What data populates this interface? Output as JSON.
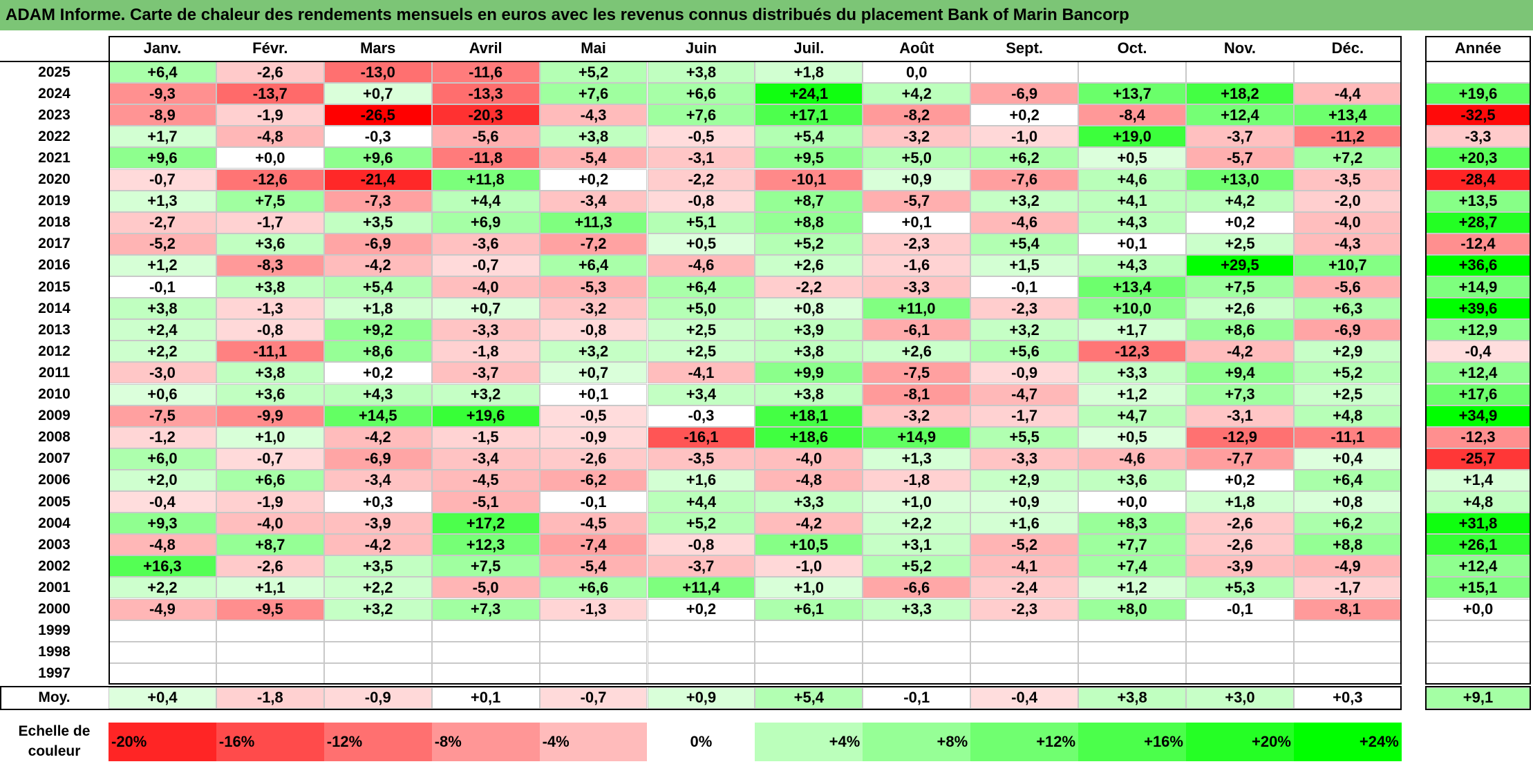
{
  "title": "ADAM Informe. Carte de chaleur des rendements mensuels en euros avec les revenus connus distribués du placement Bank of Marin Bancorp",
  "chart_data": {
    "type": "heatmap",
    "title": "ADAM Informe. Carte de chaleur des rendements mensuels en euros avec les revenus connus distribués du placement Bank of Marin Bancorp",
    "months": [
      "Janv.",
      "Févr.",
      "Mars",
      "Avril",
      "Mai",
      "Juin",
      "Juil.",
      "Août",
      "Sept.",
      "Oct.",
      "Nov.",
      "Déc."
    ],
    "annual_label": "Année",
    "average_label": "Moy.",
    "rows": [
      {
        "year": "2025",
        "values": [
          "+6,4",
          "-2,6",
          "-13,0",
          "-11,6",
          "+5,2",
          "+3,8",
          "+1,8",
          "0,0",
          "",
          "",
          "",
          ""
        ],
        "annual": ""
      },
      {
        "year": "2024",
        "values": [
          "-9,3",
          "-13,7",
          "+0,7",
          "-13,3",
          "+7,6",
          "+6,6",
          "+24,1",
          "+4,2",
          "-6,9",
          "+13,7",
          "+18,2",
          "-4,4"
        ],
        "annual": "+19,6"
      },
      {
        "year": "2023",
        "values": [
          "-8,9",
          "-1,9",
          "-26,5",
          "-20,3",
          "-4,3",
          "+7,6",
          "+17,1",
          "-8,2",
          "+0,2",
          "-8,4",
          "+12,4",
          "+13,4"
        ],
        "annual": "-32,5"
      },
      {
        "year": "2022",
        "values": [
          "+1,7",
          "-4,8",
          "-0,3",
          "-5,6",
          "+3,8",
          "-0,5",
          "+5,4",
          "-3,2",
          "-1,0",
          "+19,0",
          "-3,7",
          "-11,2"
        ],
        "annual": "-3,3"
      },
      {
        "year": "2021",
        "values": [
          "+9,6",
          "+0,0",
          "+9,6",
          "-11,8",
          "-5,4",
          "-3,1",
          "+9,5",
          "+5,0",
          "+6,2",
          "+0,5",
          "-5,7",
          "+7,2"
        ],
        "annual": "+20,3"
      },
      {
        "year": "2020",
        "values": [
          "-0,7",
          "-12,6",
          "-21,4",
          "+11,8",
          "+0,2",
          "-2,2",
          "-10,1",
          "+0,9",
          "-7,6",
          "+4,6",
          "+13,0",
          "-3,5"
        ],
        "annual": "-28,4"
      },
      {
        "year": "2019",
        "values": [
          "+1,3",
          "+7,5",
          "-7,3",
          "+4,4",
          "-3,4",
          "-0,8",
          "+8,7",
          "-5,7",
          "+3,2",
          "+4,1",
          "+4,2",
          "-2,0"
        ],
        "annual": "+13,5"
      },
      {
        "year": "2018",
        "values": [
          "-2,7",
          "-1,7",
          "+3,5",
          "+6,9",
          "+11,3",
          "+5,1",
          "+8,8",
          "+0,1",
          "-4,6",
          "+4,3",
          "+0,2",
          "-4,0"
        ],
        "annual": "+28,7"
      },
      {
        "year": "2017",
        "values": [
          "-5,2",
          "+3,6",
          "-6,9",
          "-3,6",
          "-7,2",
          "+0,5",
          "+5,2",
          "-2,3",
          "+5,4",
          "+0,1",
          "+2,5",
          "-4,3"
        ],
        "annual": "-12,4"
      },
      {
        "year": "2016",
        "values": [
          "+1,2",
          "-8,3",
          "-4,2",
          "-0,7",
          "+6,4",
          "-4,6",
          "+2,6",
          "-1,6",
          "+1,5",
          "+4,3",
          "+29,5",
          "+10,7"
        ],
        "annual": "+36,6"
      },
      {
        "year": "2015",
        "values": [
          "-0,1",
          "+3,8",
          "+5,4",
          "-4,0",
          "-5,3",
          "+6,4",
          "-2,2",
          "-3,3",
          "-0,1",
          "+13,4",
          "+7,5",
          "-5,6"
        ],
        "annual": "+14,9"
      },
      {
        "year": "2014",
        "values": [
          "+3,8",
          "-1,3",
          "+1,8",
          "+0,7",
          "-3,2",
          "+5,0",
          "+0,8",
          "+11,0",
          "-2,3",
          "+10,0",
          "+2,6",
          "+6,3"
        ],
        "annual": "+39,6"
      },
      {
        "year": "2013",
        "values": [
          "+2,4",
          "-0,8",
          "+9,2",
          "-3,3",
          "-0,8",
          "+2,5",
          "+3,9",
          "-6,1",
          "+3,2",
          "+1,7",
          "+8,6",
          "-6,9"
        ],
        "annual": "+12,9"
      },
      {
        "year": "2012",
        "values": [
          "+2,2",
          "-11,1",
          "+8,6",
          "-1,8",
          "+3,2",
          "+2,5",
          "+3,8",
          "+2,6",
          "+5,6",
          "-12,3",
          "-4,2",
          "+2,9"
        ],
        "annual": "-0,4"
      },
      {
        "year": "2011",
        "values": [
          "-3,0",
          "+3,8",
          "+0,2",
          "-3,7",
          "+0,7",
          "-4,1",
          "+9,9",
          "-7,5",
          "-0,9",
          "+3,3",
          "+9,4",
          "+5,2"
        ],
        "annual": "+12,4"
      },
      {
        "year": "2010",
        "values": [
          "+0,6",
          "+3,6",
          "+4,3",
          "+3,2",
          "+0,1",
          "+3,4",
          "+3,8",
          "-8,1",
          "-4,7",
          "+1,2",
          "+7,3",
          "+2,5"
        ],
        "annual": "+17,6"
      },
      {
        "year": "2009",
        "values": [
          "-7,5",
          "-9,9",
          "+14,5",
          "+19,6",
          "-0,5",
          "-0,3",
          "+18,1",
          "-3,2",
          "-1,7",
          "+4,7",
          "-3,1",
          "+4,8"
        ],
        "annual": "+34,9"
      },
      {
        "year": "2008",
        "values": [
          "-1,2",
          "+1,0",
          "-4,2",
          "-1,5",
          "-0,9",
          "-16,1",
          "+18,6",
          "+14,9",
          "+5,5",
          "+0,5",
          "-12,9",
          "-11,1"
        ],
        "annual": "-12,3"
      },
      {
        "year": "2007",
        "values": [
          "+6,0",
          "-0,7",
          "-6,9",
          "-3,4",
          "-2,6",
          "-3,5",
          "-4,0",
          "+1,3",
          "-3,3",
          "-4,6",
          "-7,7",
          "+0,4"
        ],
        "annual": "-25,7"
      },
      {
        "year": "2006",
        "values": [
          "+2,0",
          "+6,6",
          "-3,4",
          "-4,5",
          "-6,2",
          "+1,6",
          "-4,8",
          "-1,8",
          "+2,9",
          "+3,6",
          "+0,2",
          "+6,4"
        ],
        "annual": "+1,4"
      },
      {
        "year": "2005",
        "values": [
          "-0,4",
          "-1,9",
          "+0,3",
          "-5,1",
          "-0,1",
          "+4,4",
          "+3,3",
          "+1,0",
          "+0,9",
          "+0,0",
          "+1,8",
          "+0,8"
        ],
        "annual": "+4,8"
      },
      {
        "year": "2004",
        "values": [
          "+9,3",
          "-4,0",
          "-3,9",
          "+17,2",
          "-4,5",
          "+5,2",
          "-4,2",
          "+2,2",
          "+1,6",
          "+8,3",
          "-2,6",
          "+6,2"
        ],
        "annual": "+31,8"
      },
      {
        "year": "2003",
        "values": [
          "-4,8",
          "+8,7",
          "-4,2",
          "+12,3",
          "-7,4",
          "-0,8",
          "+10,5",
          "+3,1",
          "-5,2",
          "+7,7",
          "-2,6",
          "+8,8"
        ],
        "annual": "+26,1"
      },
      {
        "year": "2002",
        "values": [
          "+16,3",
          "-2,6",
          "+3,5",
          "+7,5",
          "-5,4",
          "-3,7",
          "-1,0",
          "+5,2",
          "-4,1",
          "+7,4",
          "-3,9",
          "-4,9"
        ],
        "annual": "+12,4"
      },
      {
        "year": "2001",
        "values": [
          "+2,2",
          "+1,1",
          "+2,2",
          "-5,0",
          "+6,6",
          "+11,4",
          "+1,0",
          "-6,6",
          "-2,4",
          "+1,2",
          "+5,3",
          "-1,7"
        ],
        "annual": "+15,1"
      },
      {
        "year": "2000",
        "values": [
          "-4,9",
          "-9,5",
          "+3,2",
          "+7,3",
          "-1,3",
          "+0,2",
          "+6,1",
          "+3,3",
          "-2,3",
          "+8,0",
          "-0,1",
          "-8,1"
        ],
        "annual": "+0,0"
      },
      {
        "year": "1999",
        "values": [
          "",
          "",
          "",
          "",
          "",
          "",
          "",
          "",
          "",
          "",
          "",
          ""
        ],
        "annual": ""
      },
      {
        "year": "1998",
        "values": [
          "",
          "",
          "",
          "",
          "",
          "",
          "",
          "",
          "",
          "",
          "",
          ""
        ],
        "annual": ""
      },
      {
        "year": "1997",
        "values": [
          "",
          "",
          "",
          "",
          "",
          "",
          "",
          "",
          "",
          "",
          "",
          ""
        ],
        "annual": ""
      }
    ],
    "averages": [
      "+0,4",
      "-1,8",
      "-0,9",
      "+0,1",
      "-0,7",
      "+0,9",
      "+5,4",
      "-0,1",
      "-0,4",
      "+3,8",
      "+3,0",
      "+0,3"
    ],
    "average_annual": "+9,1",
    "legend_label": "Echelle de couleur",
    "scale": [
      "-20%",
      "-16%",
      "-12%",
      "-8%",
      "-4%",
      "0%",
      "+4%",
      "+8%",
      "+12%",
      "+16%",
      "+20%",
      "+24%"
    ],
    "colors": {
      "negative": "#ff0000",
      "neutral": "#ffffff",
      "positive": "#00ff00"
    }
  }
}
